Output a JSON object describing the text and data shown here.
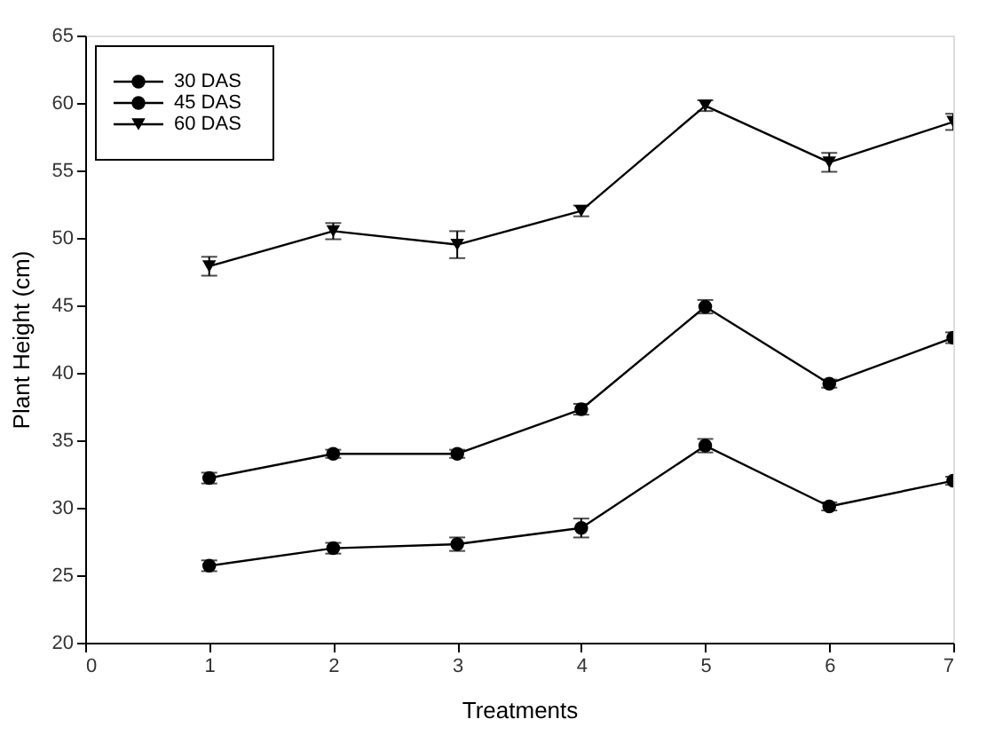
{
  "chart_data": {
    "type": "line",
    "xlabel": "Treatments",
    "ylabel": "Plant Height (cm)",
    "x": [
      1,
      2,
      3,
      4,
      5,
      6,
      7
    ],
    "series": [
      {
        "name": "30 DAS",
        "color": "#000000",
        "marker": "circle",
        "values": [
          25.7,
          27.0,
          27.3,
          28.5,
          34.6,
          30.1,
          32.0
        ],
        "errors": [
          0.4,
          0.4,
          0.5,
          0.7,
          0.5,
          0.3,
          0.3
        ]
      },
      {
        "name": "45 DAS",
        "color": "#000000",
        "marker": "circle",
        "values": [
          32.2,
          34.0,
          34.0,
          37.3,
          44.9,
          39.2,
          42.6
        ],
        "errors": [
          0.4,
          0.3,
          0.3,
          0.4,
          0.5,
          0.3,
          0.4
        ]
      },
      {
        "name": "60 DAS",
        "color": "#000000",
        "marker": "triangle",
        "values": [
          47.9,
          50.5,
          49.5,
          52.0,
          59.8,
          55.6,
          58.6
        ],
        "errors": [
          0.7,
          0.6,
          1.0,
          0.4,
          0.4,
          0.7,
          0.6
        ]
      }
    ],
    "xlim": [
      0,
      7
    ],
    "xticks": [
      0,
      1,
      2,
      3,
      4,
      5,
      6,
      7
    ],
    "ylim": [
      20,
      65
    ],
    "yticks": [
      20,
      25,
      30,
      35,
      40,
      45,
      50,
      55,
      60,
      65
    ],
    "grid": false,
    "legend": "top left",
    "line_style": "solid"
  }
}
